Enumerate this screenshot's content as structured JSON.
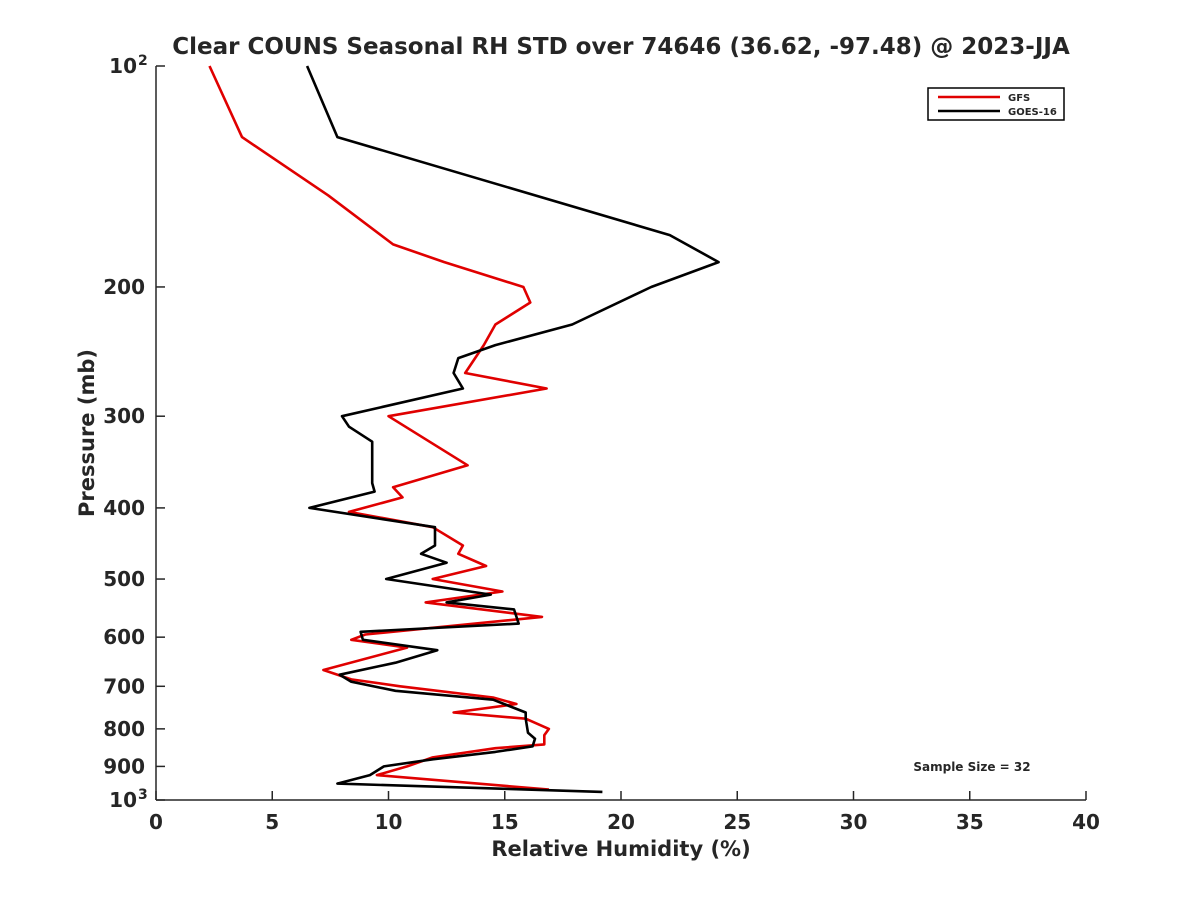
{
  "chart_data": {
    "type": "line",
    "title": "Clear COUNS Seasonal RH STD over 74646 (36.62, -97.48) @ 2023-JJA",
    "xlabel": "Relative Humidity (%)",
    "ylabel": "Pressure (mb)",
    "xlim": [
      0,
      40
    ],
    "ylim": [
      100,
      1000
    ],
    "y_scale": "log",
    "y_reversed": true,
    "grid": false,
    "legend_position": "top-right",
    "x_ticks": [
      {
        "value": 0,
        "label": "0"
      },
      {
        "value": 5,
        "label": "5"
      },
      {
        "value": 10,
        "label": "10"
      },
      {
        "value": 15,
        "label": "15"
      },
      {
        "value": 20,
        "label": "20"
      },
      {
        "value": 25,
        "label": "25"
      },
      {
        "value": 30,
        "label": "30"
      },
      {
        "value": 35,
        "label": "35"
      },
      {
        "value": 40,
        "label": "40"
      }
    ],
    "y_ticks": [
      {
        "value": 100,
        "base": "10",
        "exp": "2"
      },
      {
        "value": 200,
        "label": "200"
      },
      {
        "value": 300,
        "label": "300"
      },
      {
        "value": 400,
        "label": "400"
      },
      {
        "value": 500,
        "label": "500"
      },
      {
        "value": 600,
        "label": "600"
      },
      {
        "value": 700,
        "label": "700"
      },
      {
        "value": 800,
        "label": "800"
      },
      {
        "value": 900,
        "label": "900"
      },
      {
        "value": 1000,
        "base": "10",
        "exp": "3"
      }
    ],
    "annotation": "Sample Size = 32",
    "series": [
      {
        "name": "GFS",
        "color": "#e00000",
        "points": [
          [
            2.3,
            100
          ],
          [
            3.7,
            125
          ],
          [
            7.4,
            150
          ],
          [
            10.2,
            175
          ],
          [
            12.4,
            185
          ],
          [
            15.8,
            200
          ],
          [
            16.1,
            210
          ],
          [
            14.6,
            225
          ],
          [
            14.1,
            240
          ],
          [
            13.3,
            262
          ],
          [
            16.8,
            275
          ],
          [
            10.0,
            300
          ],
          [
            13.4,
            350
          ],
          [
            10.2,
            375
          ],
          [
            10.6,
            387
          ],
          [
            8.3,
            405
          ],
          [
            11.9,
            425
          ],
          [
            13.2,
            450
          ],
          [
            13.0,
            462
          ],
          [
            14.2,
            480
          ],
          [
            11.9,
            500
          ],
          [
            14.9,
            520
          ],
          [
            11.6,
            538
          ],
          [
            16.6,
            563
          ],
          [
            9.0,
            595
          ],
          [
            8.4,
            605
          ],
          [
            10.8,
            620
          ],
          [
            7.2,
            665
          ],
          [
            8.4,
            685
          ],
          [
            10.5,
            700
          ],
          [
            14.5,
            725
          ],
          [
            15.5,
            740
          ],
          [
            12.8,
            760
          ],
          [
            15.9,
            775
          ],
          [
            16.9,
            800
          ],
          [
            16.7,
            816
          ],
          [
            16.7,
            840
          ],
          [
            14.6,
            850
          ],
          [
            11.9,
            875
          ],
          [
            10.8,
            900
          ],
          [
            9.5,
            925
          ],
          [
            16.9,
            968
          ]
        ]
      },
      {
        "name": "GOES-16",
        "color": "#000000",
        "points": [
          [
            6.5,
            100
          ],
          [
            7.8,
            125
          ],
          [
            22.1,
            170
          ],
          [
            24.2,
            185
          ],
          [
            21.3,
            200
          ],
          [
            17.9,
            225
          ],
          [
            14.6,
            240
          ],
          [
            13.0,
            250
          ],
          [
            12.8,
            262
          ],
          [
            13.2,
            275
          ],
          [
            8.0,
            300
          ],
          [
            8.3,
            310
          ],
          [
            9.3,
            325
          ],
          [
            9.3,
            370
          ],
          [
            9.4,
            380
          ],
          [
            6.6,
            400
          ],
          [
            12.0,
            425
          ],
          [
            12.0,
            450
          ],
          [
            11.4,
            462
          ],
          [
            12.5,
            475
          ],
          [
            9.9,
            500
          ],
          [
            14.4,
            525
          ],
          [
            12.5,
            538
          ],
          [
            15.4,
            550
          ],
          [
            15.6,
            575
          ],
          [
            8.8,
            590
          ],
          [
            8.9,
            605
          ],
          [
            12.1,
            625
          ],
          [
            10.3,
            650
          ],
          [
            7.9,
            675
          ],
          [
            8.4,
            690
          ],
          [
            10.3,
            710
          ],
          [
            14.5,
            730
          ],
          [
            15.9,
            760
          ],
          [
            15.9,
            775
          ],
          [
            16.0,
            810
          ],
          [
            16.3,
            825
          ],
          [
            16.2,
            845
          ],
          [
            14.6,
            860
          ],
          [
            11.9,
            880
          ],
          [
            9.8,
            900
          ],
          [
            9.2,
            925
          ],
          [
            7.8,
            950
          ],
          [
            19.2,
            975
          ]
        ]
      }
    ]
  }
}
